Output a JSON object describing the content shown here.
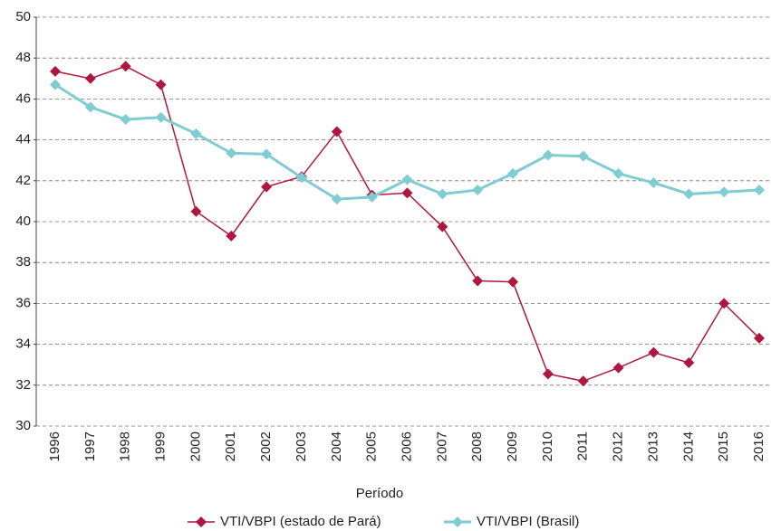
{
  "chart_data": {
    "type": "line",
    "x_label": "Período",
    "categories": [
      "1996",
      "1997",
      "1998",
      "1999",
      "2000",
      "2001",
      "2002",
      "2003",
      "2004",
      "2005",
      "2006",
      "2007",
      "2008",
      "2009",
      "2010",
      "2011",
      "2012",
      "2013",
      "2014",
      "2015",
      "2016"
    ],
    "series": [
      {
        "name": "VTI/VBPI (estado de Pará)",
        "color": "#b0173f",
        "values": [
          47.35,
          47.0,
          47.6,
          46.7,
          40.5,
          39.3,
          41.7,
          42.2,
          44.4,
          41.3,
          41.4,
          39.75,
          37.1,
          37.05,
          32.55,
          32.2,
          32.85,
          33.6,
          33.1,
          36.0,
          34.3
        ]
      },
      {
        "name": "VTI/VBPI (Brasil)",
        "color": "#80cdd1",
        "values": [
          46.7,
          45.6,
          45.0,
          45.1,
          44.3,
          43.35,
          43.3,
          42.15,
          41.1,
          41.2,
          42.05,
          41.35,
          41.55,
          42.35,
          43.25,
          43.2,
          42.35,
          41.9,
          41.35,
          41.45,
          41.55
        ]
      }
    ],
    "ylim": [
      30,
      50
    ],
    "yticks": [
      30,
      32,
      34,
      36,
      38,
      40,
      42,
      44,
      46,
      48,
      50
    ],
    "grid": true
  }
}
